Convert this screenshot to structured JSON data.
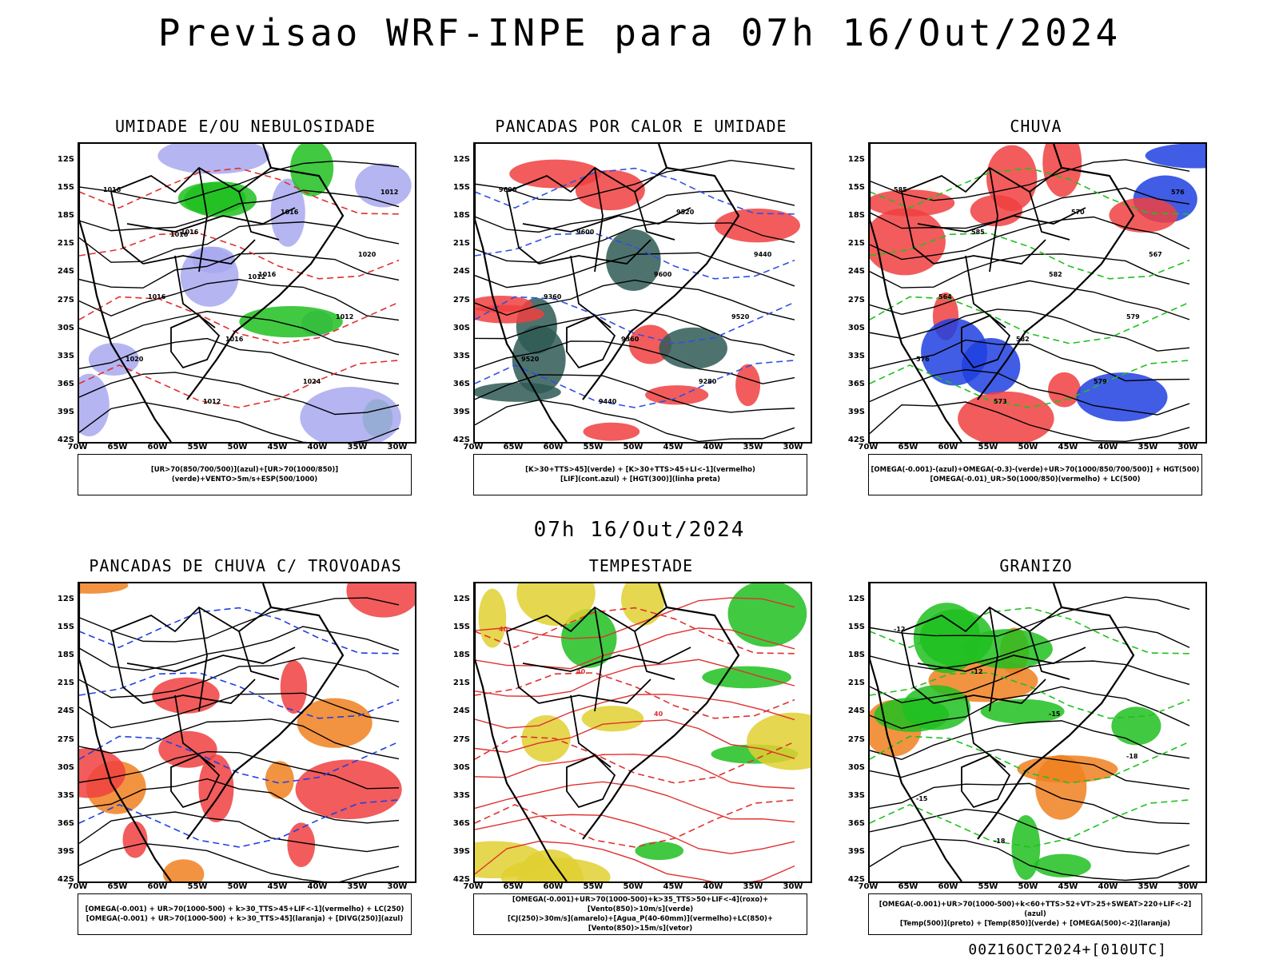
{
  "header": {
    "title": "Previsao WRF-INPE  para 07h 16/Out/2024",
    "mid_title": "07h 16/Out/2024",
    "footer_stamp": "00Z16OCT2024+[010UTC]"
  },
  "chart_data": [
    {
      "type": "map",
      "title": "UMIDADE E/OU NEBULOSIDADE",
      "legend": [
        "[UR>70(850/700/500)](azul)+[UR>70(1000/850)](verde)+VENTO>5m/s+ESP(500/1000)"
      ],
      "lat_ticks": [
        "12S",
        "15S",
        "18S",
        "21S",
        "24S",
        "27S",
        "30S",
        "33S",
        "36S",
        "39S",
        "42S"
      ],
      "lon_ticks": [
        "70W",
        "65W",
        "60W",
        "55W",
        "50W",
        "45W",
        "40W",
        "35W",
        "30W"
      ],
      "contour_labels": [
        "1016",
        "1016",
        "1016",
        "1012",
        "1020",
        "1012",
        "1016",
        "1020",
        "1016",
        "1016",
        "1024",
        "1012",
        "1016",
        "1012"
      ],
      "fields": {
        "primary": "#a8a8f0",
        "secondary": "#20c020",
        "contour": "#000000",
        "dashed": "#e03030"
      }
    },
    {
      "type": "map",
      "title": "PANCADAS POR CALOR E UMIDADE",
      "legend": [
        "[K>30+TTS>45](verde) + [K>30+TTS>45+LI<-1](vermelho)",
        "[LIF](cont.azul) + [HGT(300)](linha preta)"
      ],
      "lat_ticks": [
        "12S",
        "15S",
        "18S",
        "21S",
        "24S",
        "27S",
        "30S",
        "33S",
        "36S",
        "39S",
        "42S"
      ],
      "lon_ticks": [
        "70W",
        "65W",
        "60W",
        "55W",
        "50W",
        "45W",
        "40W",
        "35W",
        "30W"
      ],
      "contour_labels": [
        "9600",
        "9600",
        "9600",
        "9520",
        "9520",
        "9440",
        "9520",
        "9440",
        "9360",
        "9360",
        "9280"
      ],
      "fields": {
        "primary": "#f04040",
        "secondary": "#2f5a55",
        "contour": "#000000",
        "dashed": "#3050e0"
      }
    },
    {
      "type": "map",
      "title": "CHUVA",
      "legend": [
        "[OMEGA(-0.001)-(azul)+OMEGA(-0.3)-(verde)+UR>70(1000/850/700/500)] + HGT(500)",
        "[OMEGA(-0.01)_UR>50(1000/850)(vermelho) + LC(500)"
      ],
      "lat_ticks": [
        "12S",
        "15S",
        "18S",
        "21S",
        "24S",
        "27S",
        "30S",
        "33S",
        "36S",
        "39S",
        "42S"
      ],
      "lon_ticks": [
        "70W",
        "65W",
        "60W",
        "55W",
        "50W",
        "45W",
        "40W",
        "35W",
        "30W"
      ],
      "contour_labels": [
        "585",
        "585",
        "582",
        "579",
        "576",
        "573",
        "570",
        "567",
        "564",
        "582",
        "579",
        "576"
      ],
      "fields": {
        "primary": "#f04040",
        "secondary": "#2040e0",
        "contour": "#000000",
        "dashed": "#20c020"
      }
    },
    {
      "type": "map",
      "title": "PANCADAS DE CHUVA C/ TROVOADAS",
      "legend": [
        "[OMEGA(-0.001) + UR>70(1000-500) + k>30_TTS>45+LIF<-1](vermelho) + LC(250)",
        "[OMEGA(-0.001) + UR>70(1000-500) + k>30_TTS>45](laranja) + [DIVG(250)](azul)"
      ],
      "lat_ticks": [
        "12S",
        "15S",
        "18S",
        "21S",
        "24S",
        "27S",
        "30S",
        "33S",
        "36S",
        "39S",
        "42S"
      ],
      "lon_ticks": [
        "70W",
        "65W",
        "60W",
        "55W",
        "50W",
        "45W",
        "40W",
        "35W",
        "30W"
      ],
      "contour_labels": [],
      "fields": {
        "primary": "#f04040",
        "secondary": "#f08020",
        "contour": "#000000",
        "dashed": "#2040e0"
      }
    },
    {
      "type": "map",
      "title": "TEMPESTADE",
      "legend": [
        "[OMEGA(-0.001)+UR>70(1000-500)+k>35_TTS>50+LIF<-4](roxo)+[Vento(850)>10m/s](verde)",
        "[CJ(250)>30m/s](amarelo)+[Agua_P(40-60mm)](vermelho)+LC(850)+[Vento(850)>15m/s](vetor)"
      ],
      "lat_ticks": [
        "12S",
        "15S",
        "18S",
        "21S",
        "24S",
        "27S",
        "30S",
        "33S",
        "36S",
        "39S",
        "42S"
      ],
      "lon_ticks": [
        "70W",
        "65W",
        "60W",
        "55W",
        "50W",
        "45W",
        "40W",
        "35W",
        "30W"
      ],
      "contour_labels": [
        "40",
        "40",
        "40"
      ],
      "fields": {
        "primary": "#e0d030",
        "secondary": "#20c020",
        "contour": "#e03030",
        "dashed": "#e03030"
      }
    },
    {
      "type": "map",
      "title": "GRANIZO",
      "legend": [
        "[OMEGA(-0.001)+UR>70(1000-500)+k<60+TTS>52+VT>25+SWEAT>220+LIF<-2](azul)",
        "[Temp(500)](preto) + [Temp(850)](verde) + [OMEGA(500)<-2](laranja)"
      ],
      "lat_ticks": [
        "12S",
        "15S",
        "18S",
        "21S",
        "24S",
        "27S",
        "30S",
        "33S",
        "36S",
        "39S",
        "42S"
      ],
      "lon_ticks": [
        "70W",
        "65W",
        "60W",
        "55W",
        "50W",
        "45W",
        "40W",
        "35W",
        "30W"
      ],
      "contour_labels": [
        "-12",
        "-12",
        "-15",
        "-18",
        "-15",
        "-18"
      ],
      "fields": {
        "primary": "#20c020",
        "secondary": "#f08020",
        "contour": "#000000",
        "dashed": "#20c020"
      }
    }
  ]
}
